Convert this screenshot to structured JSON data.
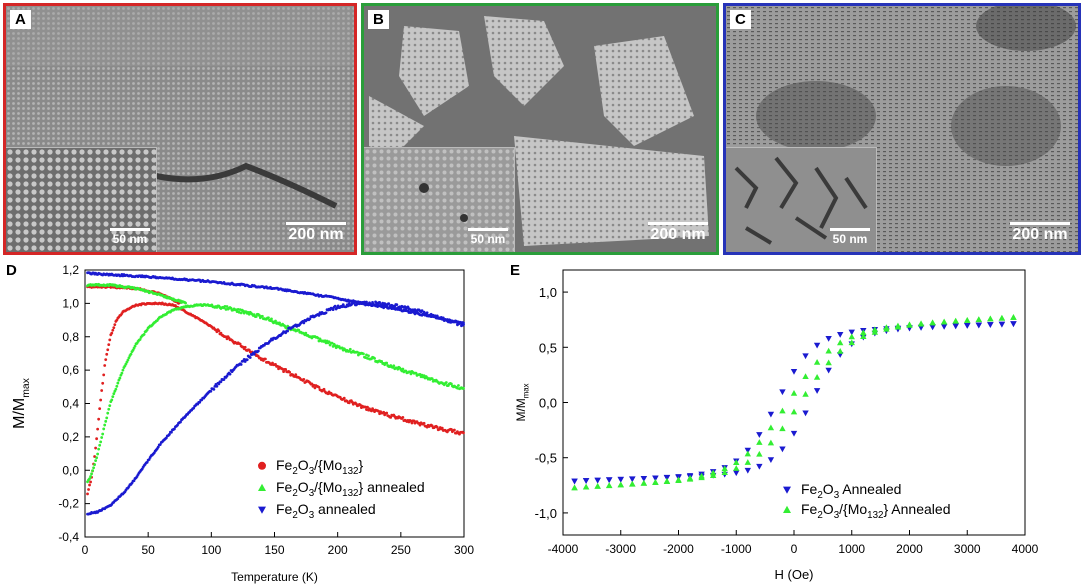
{
  "panels": [
    {
      "label": "A",
      "border": "#d42626",
      "main_scale": "200 nm",
      "inset_scale": "50 nm"
    },
    {
      "label": "B",
      "border": "#2a9d3a",
      "main_scale": "200 nm",
      "inset_scale": "50 nm"
    },
    {
      "label": "C",
      "border": "#2633b8",
      "main_scale": "200 nm",
      "inset_scale": "50 nm"
    }
  ],
  "chart_data": [
    {
      "panel_label": "D",
      "type": "line",
      "xlabel": "Temperature (K)",
      "ylabel": "M/M",
      "ylabel_sub": "max",
      "xlim": [
        0,
        300
      ],
      "ylim": [
        -0.4,
        1.2
      ],
      "xticks": [
        "0",
        "50",
        "100",
        "150",
        "200",
        "250",
        "300"
      ],
      "yticks": [
        "-0,4",
        "-0,2",
        "0,0",
        "0,2",
        "0,4",
        "0,6",
        "0,8",
        "1,0",
        "1,2"
      ],
      "legend_position": "bottom-right",
      "series": [
        {
          "name": "Fe2O3/{Mo132}",
          "legend_parts": [
            "Fe",
            "2",
            "O",
            "3",
            "/{Mo",
            "132",
            "}",
            ""
          ],
          "color": "#e02020",
          "marker": "circle",
          "fc": [
            [
              2,
              -0.14
            ],
            [
              5,
              -0.05
            ],
            [
              8,
              0.1
            ],
            [
              12,
              0.4
            ],
            [
              16,
              0.65
            ],
            [
              20,
              0.8
            ],
            [
              25,
              0.9
            ],
            [
              30,
              0.95
            ],
            [
              40,
              0.99
            ],
            [
              50,
              1.0
            ],
            [
              60,
              1.0
            ],
            [
              70,
              0.99
            ],
            [
              80,
              0.95
            ],
            [
              100,
              0.86
            ],
            [
              120,
              0.76
            ],
            [
              140,
              0.67
            ],
            [
              160,
              0.59
            ],
            [
              180,
              0.51
            ],
            [
              200,
              0.44
            ],
            [
              220,
              0.38
            ],
            [
              240,
              0.33
            ],
            [
              260,
              0.29
            ],
            [
              280,
              0.25
            ],
            [
              300,
              0.22
            ]
          ],
          "zfc": [
            [
              2,
              1.1
            ],
            [
              20,
              1.1
            ],
            [
              40,
              1.09
            ],
            [
              60,
              1.06
            ],
            [
              70,
              1.02
            ],
            [
              75,
              1.0
            ]
          ]
        },
        {
          "name": "Fe2O3/{Mo132} annealed",
          "legend_parts": [
            "Fe",
            "2",
            "O",
            "3",
            "/{Mo",
            "132",
            "} annealed",
            ""
          ],
          "color": "#33ee33",
          "marker": "triangle-up",
          "fc": [
            [
              2,
              -0.07
            ],
            [
              5,
              -0.03
            ],
            [
              10,
              0.1
            ],
            [
              15,
              0.25
            ],
            [
              20,
              0.4
            ],
            [
              30,
              0.6
            ],
            [
              40,
              0.75
            ],
            [
              50,
              0.85
            ],
            [
              60,
              0.92
            ],
            [
              70,
              0.96
            ],
            [
              80,
              0.98
            ],
            [
              90,
              0.99
            ],
            [
              100,
              0.99
            ],
            [
              120,
              0.96
            ],
            [
              140,
              0.92
            ],
            [
              160,
              0.86
            ],
            [
              180,
              0.8
            ],
            [
              200,
              0.74
            ],
            [
              220,
              0.69
            ],
            [
              240,
              0.63
            ],
            [
              260,
              0.58
            ],
            [
              280,
              0.53
            ],
            [
              300,
              0.49
            ]
          ],
          "zfc": [
            [
              2,
              1.11
            ],
            [
              20,
              1.11
            ],
            [
              40,
              1.09
            ],
            [
              60,
              1.05
            ],
            [
              80,
              1.0
            ]
          ]
        },
        {
          "name": "Fe2O3 annealed",
          "legend_parts": [
            "Fe",
            "2",
            "O",
            "3",
            " annealed",
            "",
            "",
            ""
          ],
          "color": "#1a1ad0",
          "marker": "triangle-down",
          "fc": [
            [
              2,
              -0.26
            ],
            [
              10,
              -0.25
            ],
            [
              20,
              -0.21
            ],
            [
              30,
              -0.14
            ],
            [
              40,
              -0.05
            ],
            [
              50,
              0.06
            ],
            [
              60,
              0.16
            ],
            [
              80,
              0.33
            ],
            [
              100,
              0.48
            ],
            [
              120,
              0.62
            ],
            [
              140,
              0.74
            ],
            [
              160,
              0.84
            ],
            [
              180,
              0.92
            ],
            [
              200,
              0.98
            ],
            [
              215,
              1.0
            ],
            [
              230,
              1.0
            ],
            [
              250,
              0.98
            ],
            [
              270,
              0.94
            ],
            [
              290,
              0.89
            ],
            [
              300,
              0.87
            ]
          ],
          "zfc": [
            [
              2,
              1.18
            ],
            [
              50,
              1.16
            ],
            [
              100,
              1.13
            ],
            [
              150,
              1.09
            ],
            [
              200,
              1.03
            ],
            [
              220,
              1.0
            ],
            [
              250,
              0.96
            ],
            [
              300,
              0.88
            ]
          ]
        }
      ]
    },
    {
      "panel_label": "E",
      "type": "scatter",
      "xlabel": "H (Oe)",
      "ylabel": "M/M",
      "ylabel_sub": "max",
      "xlim": [
        -4000,
        4000
      ],
      "ylim": [
        -1.2,
        1.2
      ],
      "xticks": [
        "-4000",
        "-3000",
        "-2000",
        "-1000",
        "0",
        "1000",
        "2000",
        "3000",
        "4000"
      ],
      "yticks": [
        "-1,0",
        "-0,5",
        "0,0",
        "0,5",
        "1,0"
      ],
      "legend_position": "bottom-right",
      "series": [
        {
          "name": "Fe2O3 Annealed",
          "legend_parts": [
            "Fe",
            "2",
            "O",
            "3",
            " Annealed",
            "",
            "",
            ""
          ],
          "color": "#1a1ad0",
          "marker": "triangle-down",
          "hc": 300,
          "w": 320,
          "ms": 0.64,
          "chi": 1.9e-05
        },
        {
          "name": "Fe2O3/{Mo132} Annealed",
          "legend_parts": [
            "Fe",
            "2",
            "O",
            "3",
            "/{Mo",
            "132",
            "} Annealed",
            ""
          ],
          "color": "#33ee33",
          "marker": "triangle-up",
          "hc": 110,
          "w": 420,
          "ms": 0.65,
          "chi": 3.2e-05
        }
      ]
    }
  ]
}
